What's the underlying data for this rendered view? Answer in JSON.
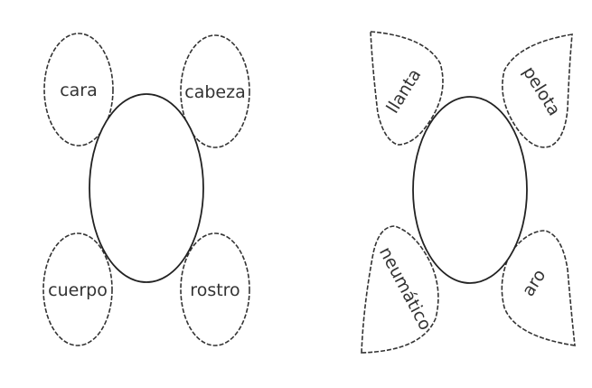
{
  "left_diagram": {
    "words": {
      "top_left": "cara",
      "top_right": "cabeza",
      "bottom_left": "cuerpo",
      "bottom_right": "rostro"
    }
  },
  "right_diagram": {
    "words": {
      "top_left": "llanta",
      "top_right": "pelota",
      "bottom_left": "neumático",
      "bottom_right": "aro"
    }
  }
}
